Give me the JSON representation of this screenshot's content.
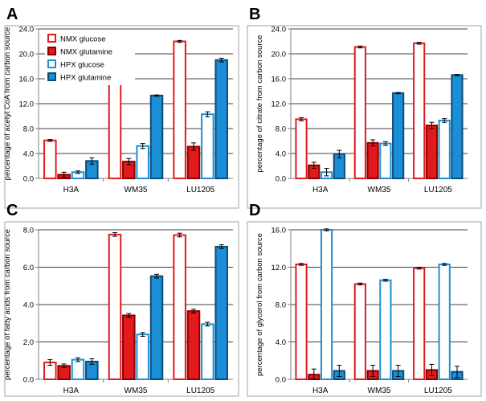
{
  "figure": {
    "legend": [
      {
        "label": "NMX glucose",
        "fill": "#ffffff",
        "stroke": "#e31a1c"
      },
      {
        "label": "NMX glutamine",
        "fill": "#e31a1c",
        "stroke": "#8b0000"
      },
      {
        "label": "HPX  glucose",
        "fill": "#ffffff",
        "stroke": "#1b8fd6"
      },
      {
        "label": "HPX  glutamine",
        "fill": "#1b8fd6",
        "stroke": "#0d4a78"
      }
    ],
    "colors": {
      "nmx": "#e31a1c",
      "hpx": "#1b8fd6",
      "axis": "#808080",
      "grid": "#000000",
      "plot_border": "#a0a0a0"
    }
  },
  "chart_data": [
    {
      "panel": "A",
      "type": "bar",
      "ylabel": "percentage of acetyl CoA from carbon source",
      "categories": [
        "H3A",
        "WM35",
        "LU1205"
      ],
      "ylim": [
        0,
        24
      ],
      "yticks": [
        "0.0",
        "4.0",
        "8.0",
        "12.0",
        "16.0",
        "20.0",
        "24.0"
      ],
      "series": [
        {
          "name": "NMX glucose",
          "values": [
            6.1,
            16.0,
            22.0
          ],
          "errors": [
            0.15,
            0.1,
            0.15
          ]
        },
        {
          "name": "NMX glutamine",
          "values": [
            0.6,
            2.7,
            5.1
          ],
          "errors": [
            0.4,
            0.5,
            0.6
          ]
        },
        {
          "name": "HPX  glucose",
          "values": [
            1.0,
            5.2,
            10.3
          ],
          "errors": [
            0.2,
            0.4,
            0.4
          ]
        },
        {
          "name": "HPX  glutamine",
          "values": [
            2.8,
            13.3,
            19.0
          ],
          "errors": [
            0.5,
            0.1,
            0.3
          ]
        }
      ]
    },
    {
      "panel": "B",
      "type": "bar",
      "ylabel": "percentage of citrate from carbon source",
      "categories": [
        "H3A",
        "WM35",
        "LU1205"
      ],
      "ylim": [
        0,
        24
      ],
      "yticks": [
        "0.0",
        "4.0",
        "8.0",
        "12.0",
        "16.0",
        "20.0",
        "24.0"
      ],
      "series": [
        {
          "name": "NMX glucose",
          "values": [
            9.5,
            21.1,
            21.7
          ],
          "errors": [
            0.25,
            0.15,
            0.15
          ]
        },
        {
          "name": "NMX glutamine",
          "values": [
            2.1,
            5.7,
            8.5
          ],
          "errors": [
            0.5,
            0.5,
            0.5
          ]
        },
        {
          "name": "HPX  glucose",
          "values": [
            1.0,
            5.6,
            9.3
          ],
          "errors": [
            0.6,
            0.3,
            0.3
          ]
        },
        {
          "name": "HPX  glutamine",
          "values": [
            3.9,
            13.7,
            16.6
          ],
          "errors": [
            0.6,
            0.1,
            0.1
          ]
        }
      ]
    },
    {
      "panel": "C",
      "type": "bar",
      "ylabel": "percentage of fatty acids from carbon source",
      "categories": [
        "H3A",
        "WM35",
        "LU1205"
      ],
      "ylim": [
        0,
        8
      ],
      "yticks": [
        "0.0",
        "2.0",
        "4.0",
        "6.0",
        "8.0"
      ],
      "series": [
        {
          "name": "NMX glucose",
          "values": [
            0.9,
            7.75,
            7.72
          ],
          "errors": [
            0.15,
            0.1,
            0.1
          ]
        },
        {
          "name": "NMX glutamine",
          "values": [
            0.72,
            3.42,
            3.65
          ],
          "errors": [
            0.1,
            0.1,
            0.1
          ]
        },
        {
          "name": "HPX  glucose",
          "values": [
            1.05,
            2.4,
            2.95
          ],
          "errors": [
            0.1,
            0.1,
            0.1
          ]
        },
        {
          "name": "HPX  glutamine",
          "values": [
            0.95,
            5.52,
            7.1
          ],
          "errors": [
            0.15,
            0.1,
            0.1
          ]
        }
      ]
    },
    {
      "panel": "D",
      "type": "bar",
      "ylabel": "percentage of glycerol from carbon source",
      "categories": [
        "H3A",
        "WM35",
        "LU1205"
      ],
      "ylim": [
        0,
        16
      ],
      "yticks": [
        "0.0",
        "4.0",
        "8.0",
        "12.0",
        "16.0"
      ],
      "series": [
        {
          "name": "NMX glucose",
          "values": [
            12.3,
            10.2,
            11.9
          ],
          "errors": [
            0.1,
            0.1,
            0.1
          ]
        },
        {
          "name": "NMX glutamine",
          "values": [
            0.5,
            0.9,
            1.0
          ],
          "errors": [
            0.6,
            0.6,
            0.6
          ]
        },
        {
          "name": "HPX  glucose",
          "values": [
            16.0,
            10.6,
            12.3
          ],
          "errors": [
            0.1,
            0.1,
            0.1
          ]
        },
        {
          "name": "HPX  glutamine",
          "values": [
            0.9,
            0.9,
            0.8
          ],
          "errors": [
            0.6,
            0.6,
            0.6
          ]
        }
      ]
    }
  ]
}
